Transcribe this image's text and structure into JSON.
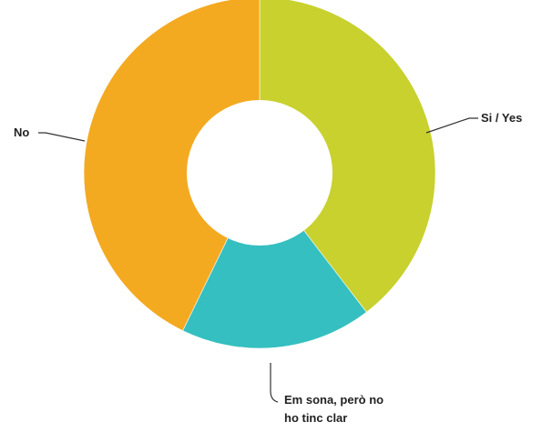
{
  "chart_data": {
    "type": "pie",
    "donut": true,
    "legend": "none",
    "slices": [
      {
        "label": "Si / Yes",
        "value": 39.6,
        "color": "#c8d12e"
      },
      {
        "label": "Em sona, però no ho tinc clar",
        "value": 17.6,
        "color": "#35bfc0"
      },
      {
        "label": "No",
        "value": 42.8,
        "color": "#f3aa21"
      }
    ],
    "labels": {
      "yes": "Si / Yes",
      "unsure_line1": "Em sona, però no",
      "unsure_line2": "ho tinc clar",
      "no": "No"
    }
  }
}
